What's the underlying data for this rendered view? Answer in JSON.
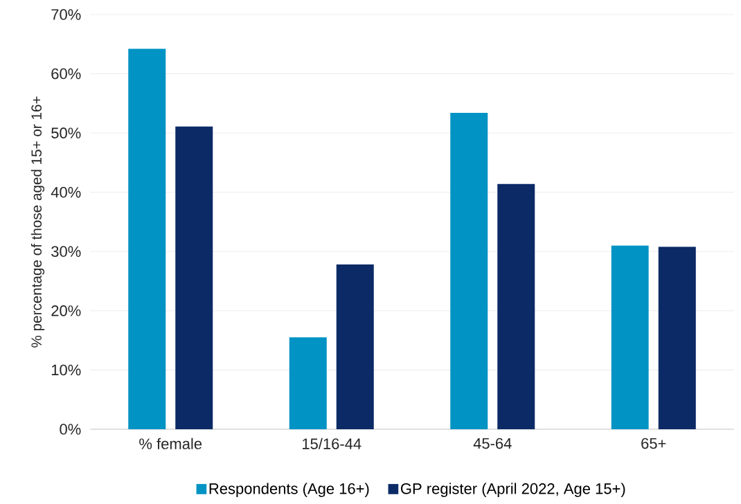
{
  "chart_data": {
    "type": "bar",
    "ylabel": "% percentage of those aged 15+ or 16+",
    "categories": [
      "% female",
      "15/16-44",
      "45-64",
      "65+"
    ],
    "series": [
      {
        "name": "Respondents (Age 16+)",
        "color": "#0093c4",
        "values": [
          64.2,
          15.5,
          53.4,
          31.0
        ]
      },
      {
        "name": "GP register (April 2022, Age 15+)",
        "color": "#0b2a66",
        "values": [
          51.1,
          27.8,
          41.4,
          30.8
        ]
      }
    ],
    "ylim": [
      0,
      70
    ],
    "yticks": [
      {
        "value": 0,
        "label": "0%"
      },
      {
        "value": 10,
        "label": "10%"
      },
      {
        "value": 20,
        "label": "20%"
      },
      {
        "value": 30,
        "label": "30%"
      },
      {
        "value": 40,
        "label": "40%"
      },
      {
        "value": 50,
        "label": "50%"
      },
      {
        "value": 60,
        "label": "60%"
      },
      {
        "value": 70,
        "label": "70%"
      }
    ],
    "grid": "y",
    "legend": "bottom"
  }
}
